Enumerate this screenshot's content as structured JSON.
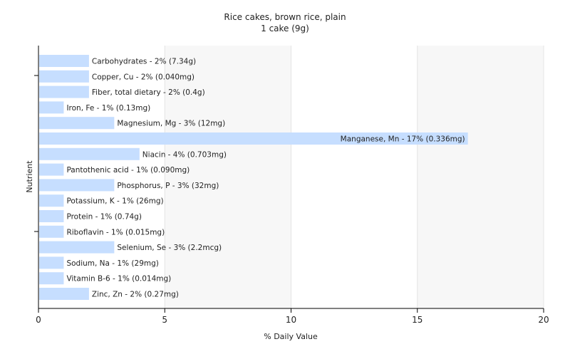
{
  "chart_data": {
    "type": "bar",
    "orientation": "horizontal",
    "title": "Rice cakes, brown rice, plain",
    "subtitle": "1 cake (9g)",
    "xlabel": "% Daily Value",
    "ylabel": "Nutrient",
    "xlim": [
      0,
      20
    ],
    "xticks": [
      0,
      5,
      10,
      15,
      20
    ],
    "grid": true,
    "bar_color": "#c6deff",
    "categories": [
      "Carbohydrates",
      "Copper, Cu",
      "Fiber, total dietary",
      "Iron, Fe",
      "Magnesium, Mg",
      "Manganese, Mn",
      "Niacin",
      "Pantothenic acid",
      "Phosphorus, P",
      "Potassium, K",
      "Protein",
      "Riboflavin",
      "Selenium, Se",
      "Sodium, Na",
      "Vitamin B-6",
      "Zinc, Zn"
    ],
    "values": [
      2,
      2,
      2,
      1,
      3,
      17,
      4,
      1,
      3,
      1,
      1,
      1,
      3,
      1,
      1,
      2
    ],
    "labels": [
      "Carbohydrates - 2% (7.34g)",
      "Copper, Cu - 2% (0.040mg)",
      "Fiber, total dietary - 2% (0.4g)",
      "Iron, Fe - 1% (0.13mg)",
      "Magnesium, Mg - 3% (12mg)",
      "Manganese, Mn - 17% (0.336mg)",
      "Niacin - 4% (0.703mg)",
      "Pantothenic acid - 1% (0.090mg)",
      "Phosphorus, P - 3% (32mg)",
      "Potassium, K - 1% (26mg)",
      "Protein - 1% (0.74g)",
      "Riboflavin - 1% (0.015mg)",
      "Selenium, Se - 3% (2.2mcg)",
      "Sodium, Na - 1% (29mg)",
      "Vitamin B-6 - 1% (0.014mg)",
      "Zinc, Zn - 2% (0.27mg)"
    ]
  }
}
